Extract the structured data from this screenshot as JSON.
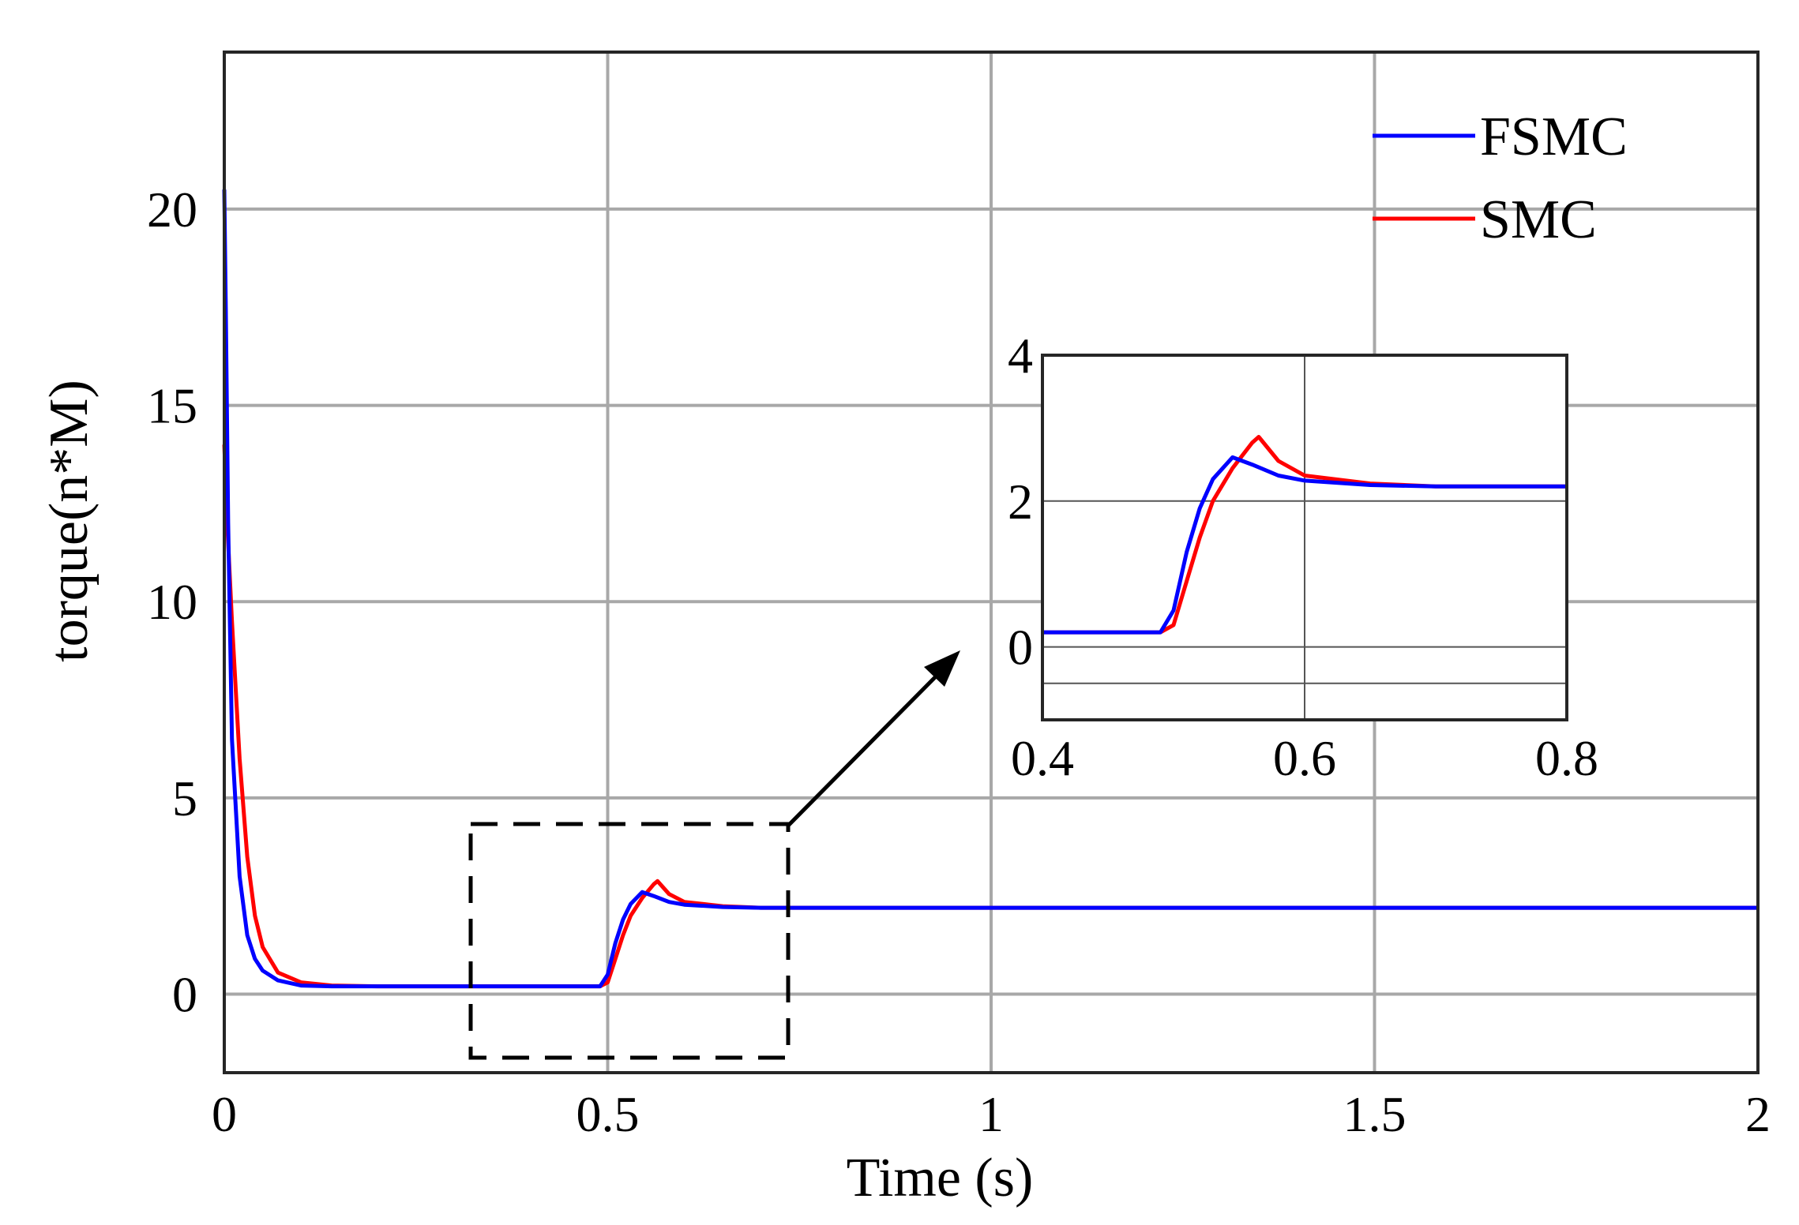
{
  "chart_data": [
    {
      "type": "line",
      "title": "",
      "xlabel": "Time (s)",
      "ylabel": "torque(n*M)",
      "xlim": [
        0,
        2
      ],
      "ylim": [
        -2,
        24
      ],
      "xticks": [
        0,
        0.5,
        1,
        1.5,
        2
      ],
      "xtick_labels": [
        "0",
        "0.5",
        "1",
        "1.5",
        "2"
      ],
      "yticks": [
        0,
        5,
        10,
        15,
        20
      ],
      "ytick_labels": [
        "0",
        "5",
        "10",
        "15",
        "20"
      ],
      "grid": true,
      "legend": "top-right",
      "series": [
        {
          "name": "FSMC",
          "color": "#0000ff",
          "x": [
            0,
            0.002,
            0.005,
            0.01,
            0.02,
            0.03,
            0.04,
            0.05,
            0.07,
            0.1,
            0.14,
            0.2,
            0.3,
            0.4,
            0.49,
            0.5,
            0.51,
            0.52,
            0.53,
            0.545,
            0.56,
            0.58,
            0.6,
            0.65,
            0.7,
            1.0,
            1.5,
            2.0
          ],
          "y": [
            20.5,
            17.5,
            12.0,
            6.5,
            3.0,
            1.5,
            0.9,
            0.6,
            0.35,
            0.22,
            0.2,
            0.2,
            0.2,
            0.2,
            0.2,
            0.5,
            1.3,
            1.9,
            2.3,
            2.6,
            2.5,
            2.35,
            2.28,
            2.22,
            2.2,
            2.2,
            2.2,
            2.2
          ]
        },
        {
          "name": "SMC",
          "color": "#ff0000",
          "x": [
            0,
            0.002,
            0.005,
            0.01,
            0.02,
            0.03,
            0.04,
            0.05,
            0.07,
            0.1,
            0.14,
            0.2,
            0.3,
            0.4,
            0.49,
            0.5,
            0.51,
            0.52,
            0.53,
            0.545,
            0.56,
            0.565,
            0.58,
            0.6,
            0.65,
            0.7,
            1.0,
            1.5,
            2.0
          ],
          "y": [
            14.0,
            13.0,
            11.5,
            9.5,
            6.0,
            3.5,
            2.0,
            1.2,
            0.55,
            0.3,
            0.22,
            0.2,
            0.2,
            0.2,
            0.2,
            0.3,
            0.9,
            1.5,
            2.0,
            2.45,
            2.8,
            2.88,
            2.55,
            2.35,
            2.24,
            2.2,
            2.2,
            2.2,
            2.2
          ]
        }
      ]
    },
    {
      "type": "line",
      "title": "",
      "xlabel": "",
      "ylabel": "",
      "xlim": [
        0.4,
        0.8
      ],
      "ylim": [
        -1,
        4
      ],
      "xticks": [
        0.4,
        0.6,
        0.8
      ],
      "xtick_labels": [
        "0.4",
        "0.6",
        "0.8"
      ],
      "yticks": [
        0,
        2,
        4
      ],
      "ytick_labels": [
        "0",
        "2",
        "4"
      ],
      "grid": true,
      "series": [
        {
          "color": "#0000ff",
          "x": [
            0.4,
            0.49,
            0.5,
            0.51,
            0.52,
            0.53,
            0.545,
            0.56,
            0.58,
            0.6,
            0.65,
            0.7,
            0.8
          ],
          "y": [
            0.2,
            0.2,
            0.5,
            1.3,
            1.9,
            2.3,
            2.6,
            2.5,
            2.35,
            2.28,
            2.22,
            2.2,
            2.2
          ]
        },
        {
          "color": "#ff0000",
          "x": [
            0.4,
            0.49,
            0.5,
            0.51,
            0.52,
            0.53,
            0.545,
            0.56,
            0.565,
            0.58,
            0.6,
            0.65,
            0.7,
            0.8
          ],
          "y": [
            0.2,
            0.2,
            0.3,
            0.9,
            1.5,
            2.0,
            2.45,
            2.8,
            2.88,
            2.55,
            2.35,
            2.24,
            2.2,
            2.2
          ]
        }
      ]
    }
  ]
}
